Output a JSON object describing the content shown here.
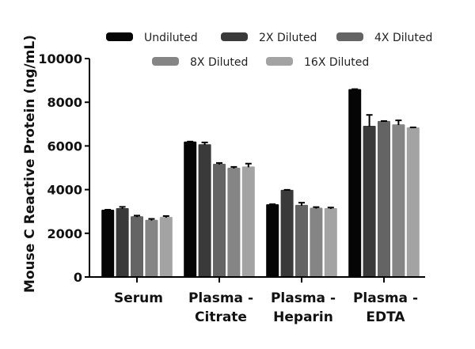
{
  "chart_data": {
    "type": "bar",
    "title": "",
    "xlabel": "",
    "ylabel": "Mouse C Reactive Protein (ng/mL)",
    "ylim": [
      0,
      10000
    ],
    "yticks": [
      0,
      2000,
      4000,
      6000,
      8000,
      10000
    ],
    "grid": false,
    "legend_position": "top",
    "categories": [
      [
        "Serum"
      ],
      [
        "Plasma -",
        "Citrate"
      ],
      [
        "Plasma -",
        "Heparin"
      ],
      [
        "Plasma -",
        "EDTA"
      ]
    ],
    "category_names": [
      "Serum",
      "Plasma - Citrate",
      "Plasma - Heparin",
      "Plasma - EDTA"
    ],
    "series": [
      {
        "name": "Undiluted",
        "color": "#050505",
        "values": [
          3080,
          6200,
          3330,
          8600
        ],
        "errors": [
          0,
          0,
          0,
          0
        ]
      },
      {
        "name": "2X Diluted",
        "color": "#3a3a3a",
        "values": [
          3150,
          6080,
          3990,
          6920
        ],
        "errors": [
          60,
          80,
          0,
          500
        ]
      },
      {
        "name": "4X Diluted",
        "color": "#646464",
        "values": [
          2780,
          5180,
          3300,
          7140
        ],
        "errors": [
          30,
          40,
          100,
          0
        ]
      },
      {
        "name": "8X Diluted",
        "color": "#858585",
        "values": [
          2620,
          5000,
          3170,
          6990
        ],
        "errors": [
          40,
          40,
          30,
          180
        ]
      },
      {
        "name": "16X Diluted",
        "color": "#a3a3a3",
        "values": [
          2750,
          5060,
          3150,
          6850
        ],
        "errors": [
          40,
          130,
          30,
          0
        ]
      }
    ]
  }
}
